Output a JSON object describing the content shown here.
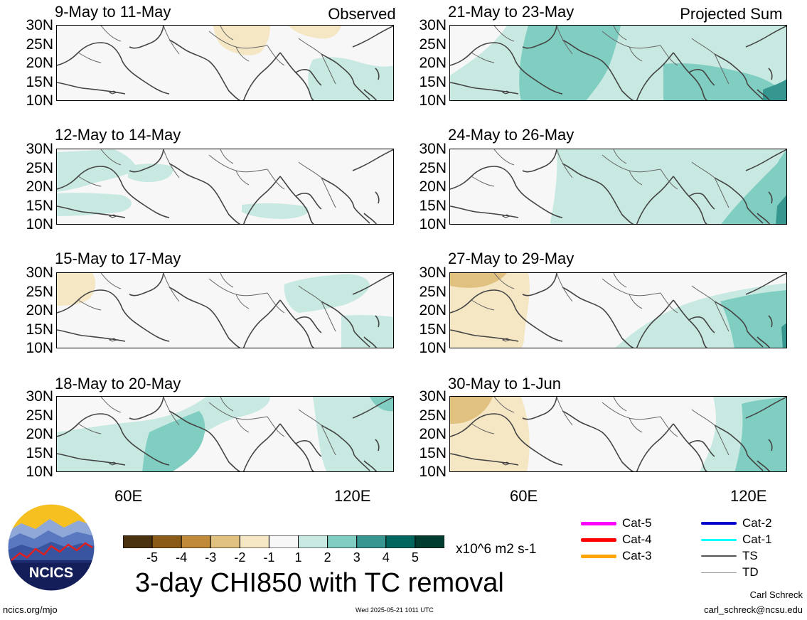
{
  "panels": [
    {
      "title": "9-May to 11-May",
      "tag": "Observed",
      "col": 0,
      "row": 0
    },
    {
      "title": "12-May to 14-May",
      "tag": "",
      "col": 0,
      "row": 1
    },
    {
      "title": "15-May to 17-May",
      "tag": "",
      "col": 0,
      "row": 2
    },
    {
      "title": "18-May to 20-May",
      "tag": "",
      "col": 0,
      "row": 3
    },
    {
      "title": "21-May to 23-May",
      "tag": "Projected Sum",
      "col": 1,
      "row": 0
    },
    {
      "title": "24-May to 26-May",
      "tag": "",
      "col": 1,
      "row": 1
    },
    {
      "title": "27-May to 29-May",
      "tag": "",
      "col": 1,
      "row": 2
    },
    {
      "title": "30-May to 1-Jun",
      "tag": "",
      "col": 1,
      "row": 3
    }
  ],
  "lat_labels": [
    "30N",
    "25N",
    "20N",
    "15N",
    "10N"
  ],
  "lon_labels": [
    "60E",
    "120E"
  ],
  "colorbar": {
    "ticks": [
      "-5",
      "-4",
      "-3",
      "-2",
      "-1",
      "1",
      "2",
      "3",
      "4",
      "5"
    ],
    "colors": [
      "#4a3110",
      "#8a5a17",
      "#c08a3a",
      "#e1c17f",
      "#f5e6c4",
      "#f7f7f7",
      "#c7e9e1",
      "#80cdc1",
      "#35978f",
      "#01665e",
      "#003c30"
    ],
    "units": "x10^6 m2 s-1"
  },
  "main_title": "3-day CHI850 with TC removal",
  "legend": [
    {
      "label": "Cat-5",
      "color": "#ff00ff",
      "width": 5
    },
    {
      "label": "Cat-4",
      "color": "#ff0000",
      "width": 5
    },
    {
      "label": "Cat-3",
      "color": "#ffa500",
      "width": 5
    },
    {
      "label": "Cat-2",
      "color": "#0000cd",
      "width": 4
    },
    {
      "label": "Cat-1",
      "color": "#00ffff",
      "width": 3
    },
    {
      "label": "TS",
      "color": "#555555",
      "width": 2
    },
    {
      "label": "TD",
      "color": "#999999",
      "width": 1
    }
  ],
  "logo": {
    "text": "NCICS"
  },
  "footer": {
    "url": "ncics.org/mjo",
    "timestamp": "Wed 2025-05-21 1011 UTC",
    "author": "Carl Schreck",
    "email": "carl_schreck@ncsu.edu"
  }
}
